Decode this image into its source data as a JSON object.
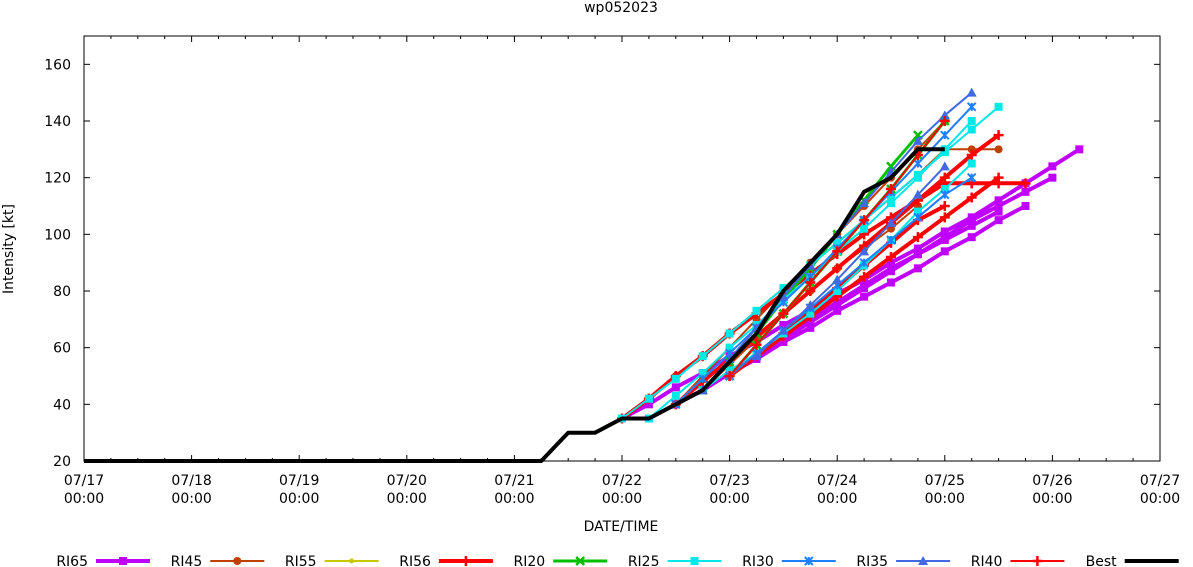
{
  "chart_data": {
    "type": "line",
    "title": "wp052023",
    "xlabel": "DATE/TIME",
    "ylabel": "Intensity [kt]",
    "x_units": "hours since 07/17 00:00",
    "xlim": [
      0,
      240
    ],
    "ylim": [
      20,
      170
    ],
    "yticks": [
      20,
      40,
      60,
      80,
      100,
      120,
      140,
      160
    ],
    "xticks": [
      {
        "date": "07/17",
        "time": "00:00"
      },
      {
        "date": "07/18",
        "time": "00:00"
      },
      {
        "date": "07/19",
        "time": "00:00"
      },
      {
        "date": "07/20",
        "time": "00:00"
      },
      {
        "date": "07/21",
        "time": "00:00"
      },
      {
        "date": "07/22",
        "time": "00:00"
      },
      {
        "date": "07/23",
        "time": "00:00"
      },
      {
        "date": "07/24",
        "time": "00:00"
      },
      {
        "date": "07/25",
        "time": "00:00"
      },
      {
        "date": "07/26",
        "time": "00:00"
      },
      {
        "date": "07/27",
        "time": "00:00"
      }
    ],
    "grid": false,
    "legend_position": "bottom",
    "step_hours": 6,
    "series": [
      {
        "name": "RI65",
        "color": "#c000ff",
        "width": 4,
        "marker": "square",
        "forecasts": [
          {
            "t0": 120,
            "v": [
              35,
              40,
              46,
              51,
              57,
              62,
              68,
              73,
              79,
              84,
              90,
              95,
              101,
              106,
              112,
              118,
              124,
              130
            ]
          },
          {
            "t0": 126,
            "v": [
              35,
              40,
              45,
              51,
              56,
              62,
              67,
              73,
              78,
              83,
              88,
              94,
              99,
              105,
              110
            ]
          },
          {
            "t0": 132,
            "v": [
              40,
              45,
              51,
              57,
              63,
              69,
              75,
              81,
              87,
              93,
              99,
              105,
              110,
              115,
              120
            ]
          },
          {
            "t0": 138,
            "v": [
              45,
              51,
              57,
              63,
              70,
              76,
              82,
              88,
              93,
              98,
              103,
              108
            ]
          }
        ]
      },
      {
        "name": "RI45",
        "color": "#c04000",
        "width": 2,
        "marker": "circle",
        "forecasts": [
          {
            "t0": 120,
            "v": [
              35,
              42,
              50,
              57,
              65,
              73,
              81,
              89,
              97,
              105,
              113,
              121,
              130,
              130,
              130
            ]
          },
          {
            "t0": 138,
            "v": [
              45,
              54,
              63,
              72,
              80,
              88,
              95,
              102,
              110
            ]
          },
          {
            "t0": 132,
            "v": [
              40,
              50,
              60,
              70,
              80,
              90,
              100,
              110,
              120,
              130,
              140
            ]
          }
        ]
      },
      {
        "name": "RI55",
        "color": "#c8c800",
        "width": 2,
        "marker": "dot",
        "forecasts": [
          {
            "t0": 132,
            "v": [
              40,
              48,
              56,
              64,
              72,
              80,
              88,
              96,
              104,
              112,
              120
            ]
          }
        ]
      },
      {
        "name": "RI56",
        "color": "#ff0000",
        "width": 4,
        "marker": "plus",
        "forecasts": [
          {
            "t0": 120,
            "v": [
              35,
              42,
              50,
              57,
              65,
              72,
              79,
              86,
              93,
              100,
              106,
              112,
              118,
              118,
              118,
              118
            ]
          },
          {
            "t0": 132,
            "v": [
              40,
              48,
              56,
              64,
              72,
              80,
              88,
              96,
              104,
              112,
              120,
              128,
              135
            ]
          },
          {
            "t0": 144,
            "v": [
              50,
              57,
              64,
              71,
              78,
              85,
              92,
              99,
              106,
              113,
              120
            ]
          },
          {
            "t0": 150,
            "v": [
              57,
              65,
              73,
              81,
              89,
              97,
              105,
              110
            ]
          }
        ]
      },
      {
        "name": "RI20",
        "color": "#00c000",
        "width": 3,
        "marker": "cross",
        "forecasts": [
          {
            "t0": 138,
            "v": [
              45,
              55,
              65,
              77,
              88,
              100,
              112,
              124,
              135
            ]
          },
          {
            "t0": 144,
            "v": [
              50,
              61,
              72,
              83,
              94,
              105,
              116,
              128,
              140
            ]
          }
        ]
      },
      {
        "name": "RI25",
        "color": "#00e8e8",
        "width": 2,
        "marker": "square",
        "forecasts": [
          {
            "t0": 126,
            "v": [
              35,
              43,
              51,
              60,
              68,
              77,
              85,
              94,
              102,
              111,
              120,
              130,
              140
            ]
          },
          {
            "t0": 120,
            "v": [
              35,
              42,
              49,
              57,
              65,
              73,
              81,
              89,
              97,
              105,
              113,
              121,
              129,
              137,
              145
            ]
          },
          {
            "t0": 138,
            "v": [
              45,
              52,
              58,
              65,
              72,
              80,
              89,
              98,
              108,
              116,
              125
            ]
          }
        ]
      },
      {
        "name": "RI30",
        "color": "#1e80ff",
        "width": 2,
        "marker": "asterisk",
        "forecasts": [
          {
            "t0": 132,
            "v": [
              40,
              49,
              58,
              67,
              76,
              85,
              95,
              105,
              115,
              125,
              135,
              145
            ]
          },
          {
            "t0": 144,
            "v": [
              50,
              58,
              66,
              74,
              82,
              90,
              98,
              106,
              114,
              120
            ]
          }
        ]
      },
      {
        "name": "RI35",
        "color": "#4169e1",
        "width": 2,
        "marker": "triangle",
        "forecasts": [
          {
            "t0": 138,
            "v": [
              45,
              56,
              67,
              78,
              89,
              100,
              111,
              122,
              133,
              142,
              150
            ]
          },
          {
            "t0": 150,
            "v": [
              57,
              66,
              75,
              84,
              94,
              104,
              114,
              124
            ]
          }
        ]
      },
      {
        "name": "RI40",
        "color": "#ff0000",
        "width": 2,
        "marker": "plus",
        "forecasts": [
          {
            "t0": 144,
            "v": [
              50,
              61,
              72,
              83,
              94,
              105,
              116,
              128,
              140
            ]
          }
        ]
      },
      {
        "name": "Best",
        "color": "#000000",
        "width": 4,
        "marker": "none",
        "points": [
          [
            0,
            20
          ],
          [
            102,
            20
          ],
          [
            105,
            25
          ],
          [
            108,
            30
          ],
          [
            114,
            30
          ],
          [
            120,
            35
          ],
          [
            126,
            35
          ],
          [
            132,
            40
          ],
          [
            138,
            45
          ],
          [
            144,
            55
          ],
          [
            150,
            65
          ],
          [
            156,
            80
          ],
          [
            162,
            90
          ],
          [
            168,
            100
          ],
          [
            174,
            115
          ],
          [
            180,
            120
          ],
          [
            186,
            130
          ],
          [
            192,
            130
          ]
        ]
      }
    ]
  }
}
